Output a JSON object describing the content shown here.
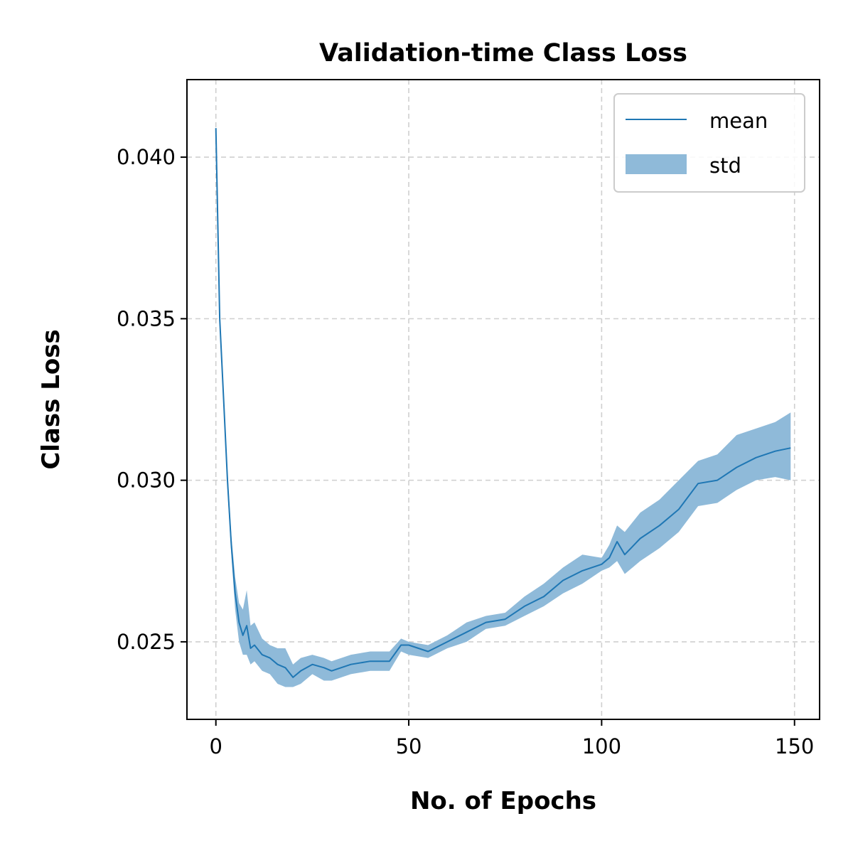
{
  "chart_data": {
    "type": "line",
    "title": "Validation-time Class Loss",
    "xlabel": "No. of Epochs",
    "ylabel": "Class Loss",
    "xlim": [
      -7.5,
      156.5
    ],
    "ylim": [
      0.0226,
      0.0424
    ],
    "xticks": [
      0,
      50,
      100,
      150
    ],
    "xtick_labels": [
      "0",
      "50",
      "100",
      "150"
    ],
    "yticks": [
      0.025,
      0.03,
      0.035,
      0.04
    ],
    "ytick_labels": [
      "0.025",
      "0.030",
      "0.035",
      "0.040"
    ],
    "grid": true,
    "legend_position": "top-right",
    "colors": {
      "line": "#1f77b4",
      "band": "#8fbad9"
    },
    "legend": [
      {
        "label": "mean",
        "kind": "line"
      },
      {
        "label": "std",
        "kind": "band"
      }
    ],
    "series": [
      {
        "name": "mean",
        "x": [
          0,
          1,
          2,
          3,
          4,
          5,
          6,
          7,
          8,
          9,
          10,
          12,
          14,
          16,
          18,
          20,
          22,
          25,
          28,
          30,
          35,
          40,
          45,
          48,
          50,
          55,
          60,
          65,
          70,
          75,
          80,
          85,
          90,
          95,
          100,
          102,
          104,
          106,
          110,
          115,
          120,
          125,
          130,
          135,
          140,
          145,
          149
        ],
        "y": [
          0.0409,
          0.035,
          0.0325,
          0.03,
          0.028,
          0.0265,
          0.0256,
          0.0252,
          0.0255,
          0.0248,
          0.0249,
          0.0246,
          0.0245,
          0.0243,
          0.0242,
          0.0239,
          0.0241,
          0.0243,
          0.0242,
          0.0241,
          0.0243,
          0.0244,
          0.0244,
          0.0249,
          0.0249,
          0.0247,
          0.025,
          0.0253,
          0.0256,
          0.0257,
          0.0261,
          0.0264,
          0.0269,
          0.0272,
          0.0274,
          0.0276,
          0.0281,
          0.0277,
          0.0282,
          0.0286,
          0.0291,
          0.0299,
          0.03,
          0.0304,
          0.0307,
          0.0309,
          0.031
        ]
      },
      {
        "name": "std",
        "x": [
          0,
          1,
          2,
          3,
          4,
          5,
          6,
          7,
          8,
          9,
          10,
          12,
          14,
          16,
          18,
          20,
          22,
          25,
          28,
          30,
          35,
          40,
          45,
          48,
          50,
          55,
          60,
          65,
          70,
          75,
          80,
          85,
          90,
          95,
          100,
          102,
          104,
          106,
          110,
          115,
          120,
          125,
          130,
          135,
          140,
          145,
          149
        ],
        "upper": [
          0.0409,
          0.0351,
          0.0327,
          0.0303,
          0.0283,
          0.027,
          0.0262,
          0.026,
          0.0266,
          0.0255,
          0.0256,
          0.0251,
          0.0249,
          0.0248,
          0.0248,
          0.0243,
          0.0245,
          0.0246,
          0.0245,
          0.0244,
          0.0246,
          0.0247,
          0.0247,
          0.0251,
          0.025,
          0.0249,
          0.0252,
          0.0256,
          0.0258,
          0.0259,
          0.0264,
          0.0268,
          0.0273,
          0.0277,
          0.0276,
          0.028,
          0.0286,
          0.0284,
          0.029,
          0.0294,
          0.03,
          0.0306,
          0.0308,
          0.0314,
          0.0316,
          0.0318,
          0.0321
        ],
        "lower": [
          0.0409,
          0.0349,
          0.0323,
          0.0297,
          0.0277,
          0.026,
          0.025,
          0.0246,
          0.0246,
          0.0243,
          0.0244,
          0.0241,
          0.024,
          0.0237,
          0.0236,
          0.0236,
          0.0237,
          0.024,
          0.0238,
          0.0238,
          0.024,
          0.0241,
          0.0241,
          0.0247,
          0.0246,
          0.0245,
          0.0248,
          0.025,
          0.0254,
          0.0255,
          0.0258,
          0.0261,
          0.0265,
          0.0268,
          0.0272,
          0.0273,
          0.0275,
          0.0271,
          0.0275,
          0.0279,
          0.0284,
          0.0292,
          0.0293,
          0.0297,
          0.03,
          0.0301,
          0.03
        ]
      }
    ]
  }
}
